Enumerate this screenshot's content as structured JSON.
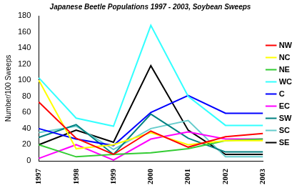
{
  "chart_data": {
    "type": "line",
    "title": "Japanese Beetle Populations 1997 - 2003, Soybean Sweeps",
    "y_label": "Number/100 Sweeps",
    "categories": [
      "1997",
      "1998",
      "1999",
      "2000",
      "2001",
      "2002",
      "2003"
    ],
    "series": [
      {
        "name": "NW",
        "color": "#ff0000",
        "values": [
          73,
          28,
          8,
          37,
          17,
          30,
          34
        ]
      },
      {
        "name": "NC",
        "color": "#ffff00",
        "values": [
          100,
          15,
          20,
          35,
          20,
          25,
          25
        ]
      },
      {
        "name": "NE",
        "color": "#33cc33",
        "values": [
          20,
          5,
          8,
          10,
          15,
          25,
          27
        ]
      },
      {
        "name": "WC",
        "color": "#33ffff",
        "values": [
          103,
          53,
          43,
          168,
          80,
          44,
          44
        ]
      },
      {
        "name": "C",
        "color": "#0000ff",
        "values": [
          40,
          27,
          19,
          60,
          81,
          59,
          59
        ]
      },
      {
        "name": "EC",
        "color": "#ff00ff",
        "values": [
          3,
          20,
          1,
          27,
          36,
          27,
          27
        ]
      },
      {
        "name": "SW",
        "color": "#008080",
        "values": [
          29,
          45,
          8,
          58,
          28,
          11,
          11
        ]
      },
      {
        "name": "SC",
        "color": "#66cccc",
        "values": [
          35,
          43,
          14,
          40,
          50,
          5,
          5
        ]
      },
      {
        "name": "SE",
        "color": "#000000",
        "values": [
          20,
          38,
          23,
          118,
          38,
          8,
          8
        ]
      }
    ],
    "ylim": [
      0,
      180
    ],
    "yticks": [
      0,
      20,
      40,
      60,
      80,
      100,
      120,
      140,
      160,
      180
    ],
    "grid": false,
    "legend": "right"
  }
}
